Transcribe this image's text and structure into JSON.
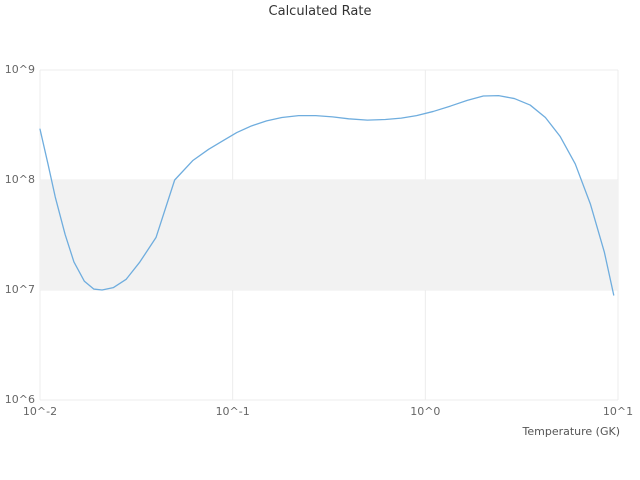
{
  "chart_data": {
    "type": "line",
    "title": "Calculated Rate",
    "xlabel": "Temperature (GK)",
    "ylabel": "",
    "x_scale": "log",
    "y_scale": "log",
    "xlim": [
      0.01,
      10
    ],
    "ylim": [
      1000000.0,
      1000000000.0
    ],
    "x_ticks": [
      {
        "value": 0.01,
        "label": "10^-2"
      },
      {
        "value": 0.1,
        "label": "10^-1"
      },
      {
        "value": 1,
        "label": "10^0"
      },
      {
        "value": 10,
        "label": "10^1"
      }
    ],
    "y_ticks": [
      {
        "value": 1000000.0,
        "label": "10^6"
      },
      {
        "value": 10000000.0,
        "label": "10^7"
      },
      {
        "value": 100000000.0,
        "label": "10^8"
      },
      {
        "value": 1000000000.0,
        "label": "10^9"
      }
    ],
    "plot_band": {
      "from": 10000000.0,
      "to": 100000000.0,
      "color": "#f2f2f2"
    },
    "grid_color": "#ececec",
    "line_color": "#6fadde",
    "legend": "none",
    "series": [
      {
        "name": "Calculated Rate",
        "x": [
          0.01,
          0.011,
          0.012,
          0.0135,
          0.015,
          0.017,
          0.019,
          0.021,
          0.024,
          0.028,
          0.033,
          0.04,
          0.05,
          0.062,
          0.075,
          0.09,
          0.105,
          0.125,
          0.15,
          0.18,
          0.22,
          0.27,
          0.33,
          0.4,
          0.5,
          0.62,
          0.75,
          0.9,
          1.1,
          1.35,
          1.65,
          2.0,
          2.4,
          2.9,
          3.5,
          4.2,
          5.0,
          6.0,
          7.2,
          8.5,
          9.5
        ],
        "y": [
          290000000.0,
          140000000.0,
          70000000.0,
          32000000.0,
          18000000.0,
          12000000.0,
          10200000.0,
          10000000.0,
          10500000.0,
          12500000.0,
          18000000.0,
          30000000.0,
          100000000.0,
          150000000.0,
          190000000.0,
          230000000.0,
          270000000.0,
          310000000.0,
          345000000.0,
          370000000.0,
          385000000.0,
          385000000.0,
          375000000.0,
          360000000.0,
          350000000.0,
          355000000.0,
          365000000.0,
          385000000.0,
          420000000.0,
          470000000.0,
          530000000.0,
          580000000.0,
          585000000.0,
          550000000.0,
          480000000.0,
          370000000.0,
          250000000.0,
          140000000.0,
          60000000.0,
          22000000.0,
          9000000.0
        ]
      }
    ]
  }
}
